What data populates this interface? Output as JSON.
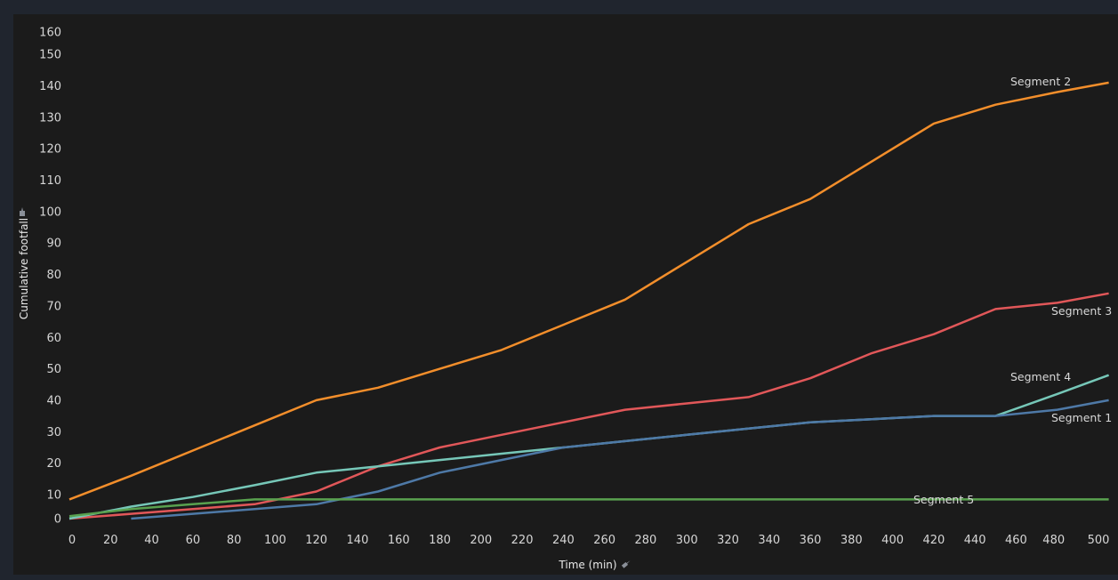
{
  "chart_data": {
    "type": "line",
    "xlabel": "Time (min)",
    "ylabel": "Cumulative footfall",
    "x_ticks": [
      0,
      20,
      40,
      60,
      80,
      100,
      120,
      140,
      160,
      180,
      200,
      220,
      240,
      260,
      280,
      300,
      320,
      340,
      360,
      380,
      400,
      420,
      440,
      460,
      480,
      500
    ],
    "y_ticks": [
      0,
      10,
      20,
      30,
      40,
      50,
      60,
      70,
      80,
      90,
      100,
      110,
      120,
      130,
      140,
      150,
      160
    ],
    "xlim": [
      0,
      505
    ],
    "ylim": [
      0,
      160
    ],
    "grid": false,
    "legend": "inline labels at right end of lines",
    "series": [
      {
        "name": "Segment 2",
        "color": "#f28e2b",
        "points": [
          [
            0,
            8
          ],
          [
            30,
            16
          ],
          [
            60,
            24
          ],
          [
            90,
            32
          ],
          [
            120,
            40
          ],
          [
            150,
            44
          ],
          [
            180,
            50
          ],
          [
            210,
            56
          ],
          [
            240,
            64
          ],
          [
            270,
            72
          ],
          [
            300,
            84
          ],
          [
            330,
            96
          ],
          [
            360,
            104
          ],
          [
            390,
            116
          ],
          [
            420,
            128
          ],
          [
            450,
            134
          ],
          [
            480,
            138
          ],
          [
            505,
            141
          ]
        ]
      },
      {
        "name": "Segment 3",
        "color": "#e15759",
        "points": [
          [
            0,
            0
          ],
          [
            30,
            2
          ],
          [
            60,
            4
          ],
          [
            90,
            6
          ],
          [
            120,
            11
          ],
          [
            150,
            19
          ],
          [
            180,
            25
          ],
          [
            210,
            29
          ],
          [
            240,
            33
          ],
          [
            270,
            37
          ],
          [
            300,
            39
          ],
          [
            330,
            41
          ],
          [
            360,
            47
          ],
          [
            390,
            55
          ],
          [
            420,
            61
          ],
          [
            450,
            69
          ],
          [
            480,
            71
          ],
          [
            505,
            74
          ]
        ]
      },
      {
        "name": "Segment 4",
        "color": "#76c7b8",
        "points": [
          [
            0,
            0
          ],
          [
            30,
            5
          ],
          [
            60,
            9
          ],
          [
            90,
            13
          ],
          [
            120,
            17
          ],
          [
            150,
            19
          ],
          [
            180,
            21
          ],
          [
            210,
            23
          ],
          [
            240,
            25
          ],
          [
            270,
            27
          ],
          [
            300,
            29
          ],
          [
            330,
            31
          ],
          [
            360,
            33
          ],
          [
            390,
            34
          ],
          [
            420,
            35
          ],
          [
            450,
            35
          ],
          [
            480,
            42
          ],
          [
            505,
            48
          ]
        ]
      },
      {
        "name": "Segment 1",
        "color": "#4e79a7",
        "points": [
          [
            30,
            0
          ],
          [
            60,
            2
          ],
          [
            90,
            4
          ],
          [
            120,
            6
          ],
          [
            150,
            11
          ],
          [
            180,
            17
          ],
          [
            210,
            21
          ],
          [
            240,
            25
          ],
          [
            270,
            27
          ],
          [
            300,
            29
          ],
          [
            330,
            31
          ],
          [
            360,
            33
          ],
          [
            390,
            34
          ],
          [
            420,
            35
          ],
          [
            450,
            35
          ],
          [
            480,
            37
          ],
          [
            505,
            40
          ]
        ]
      },
      {
        "name": "Segment 5",
        "color": "#59a14f",
        "points": [
          [
            0,
            1
          ],
          [
            30,
            4
          ],
          [
            60,
            6
          ],
          [
            90,
            8
          ],
          [
            120,
            8
          ],
          [
            150,
            8
          ],
          [
            180,
            8
          ],
          [
            210,
            8
          ],
          [
            240,
            8
          ],
          [
            270,
            8
          ],
          [
            300,
            8
          ],
          [
            330,
            8
          ],
          [
            360,
            8
          ],
          [
            390,
            8
          ],
          [
            420,
            8
          ],
          [
            450,
            8
          ],
          [
            480,
            8
          ],
          [
            505,
            8
          ]
        ]
      }
    ]
  }
}
